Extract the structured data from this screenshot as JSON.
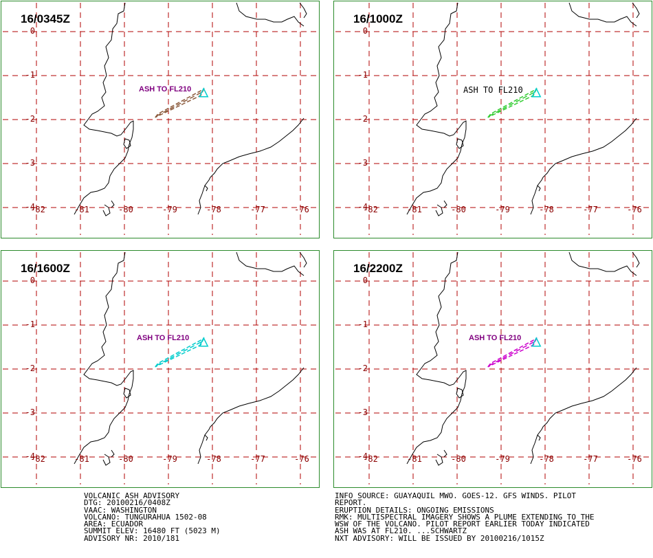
{
  "panels": [
    {
      "time": "16/0345Z",
      "ash_label": "ASH TO FL210",
      "ash_color": "#800080",
      "plume_color": "#8b5a3c",
      "label_style": "bold"
    },
    {
      "time": "16/1000Z",
      "ash_label": "ASH TO FL210",
      "ash_color": "#000000",
      "plume_color": "#33cc33",
      "label_style": "mono"
    },
    {
      "time": "16/1600Z",
      "ash_label": "ASH TO FL210",
      "ash_color": "#800080",
      "plume_color": "#00cccc",
      "label_style": "bold"
    },
    {
      "time": "16/2200Z",
      "ash_label": "ASH TO FL210",
      "ash_color": "#800080",
      "plume_color": "#cc00cc",
      "label_style": "bold"
    }
  ],
  "lat_labels": [
    "0",
    "-1",
    "-2",
    "-3",
    "-4"
  ],
  "lon_labels": [
    "-82",
    "-81",
    "-80",
    "-79",
    "-78",
    "-77",
    "-76"
  ],
  "volcano_color": "#00cccc",
  "grid_color": "#b00000",
  "coast_color": "#000000",
  "advisory_left": [
    "VOLCANIC ASH ADVISORY",
    "DTG: 20100216/0408Z",
    "VAAC: WASHINGTON",
    "VOLCANO: TUNGURAHUA 1502-08",
    "AREA: ECUADOR",
    "SUMMIT ELEV: 16480 FT (5023 M)",
    "ADVISORY NR: 2010/181"
  ],
  "advisory_right": [
    "INFO SOURCE: GUAYAQUIL MWO. GOES-12. GFS WINDS. PILOT",
    "REPORT.",
    "ERUPTION DETAILS: ONGOING EMISSIONS",
    "RMK: MULTISPECTRAL IMAGERY SHOWS A PLUME EXTENDING TO THE",
    "WSW OF THE VOLCANO. PILOT REPORT EARLIER TODAY INDICATED",
    "ASH WAS AT FL210. ...SCHWARTZ",
    "NXT ADVISORY: WILL BE ISSUED BY 20100216/1015Z"
  ]
}
